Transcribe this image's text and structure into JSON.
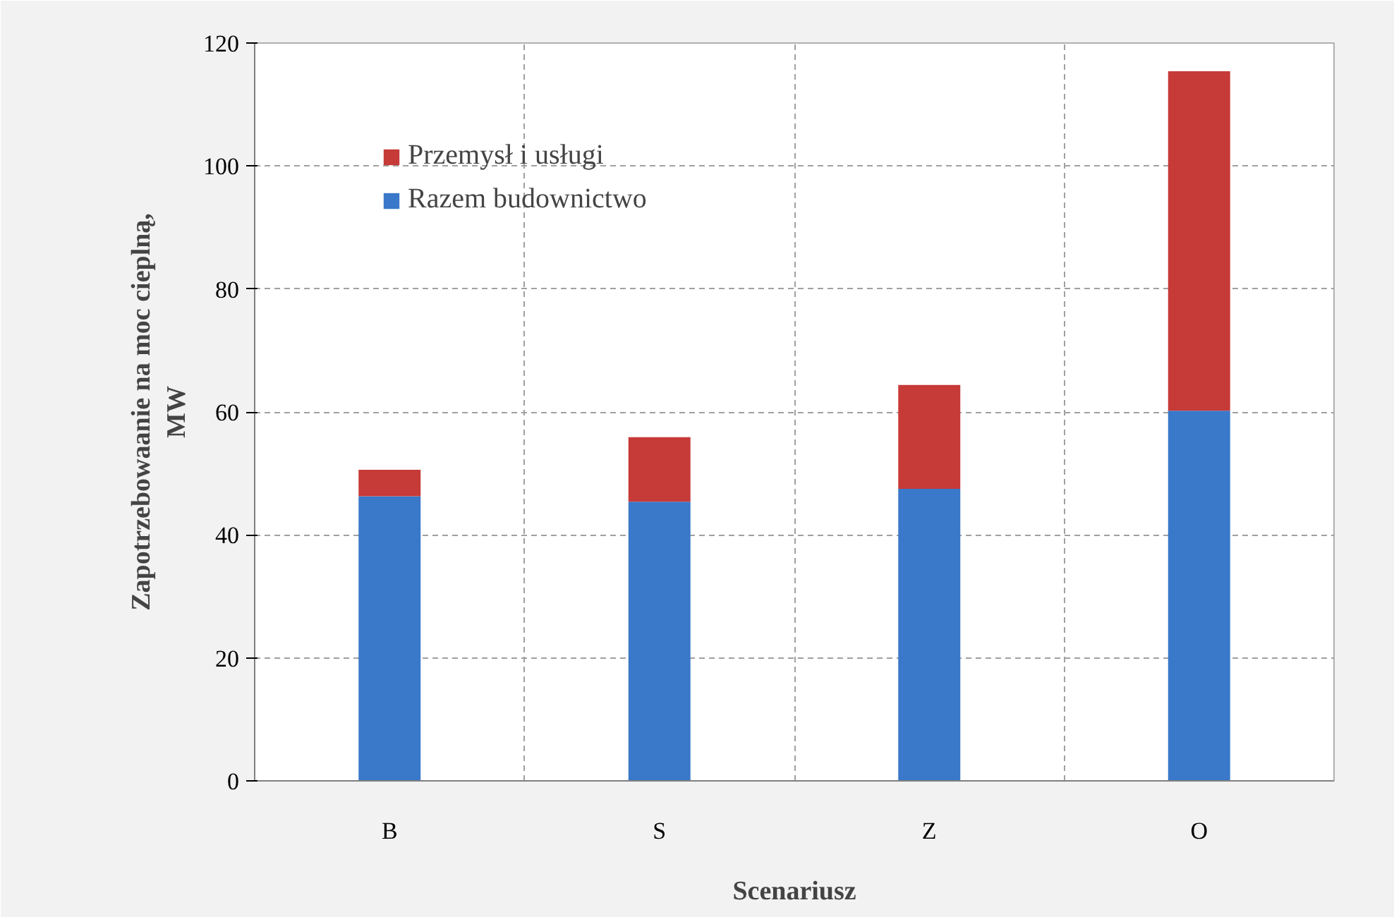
{
  "chart_data": {
    "type": "bar",
    "stacked": true,
    "xlabel": "Scenariusz",
    "ylabel": "Zapotrzebowaanie na moc cieplną, MW",
    "categories": [
      "B",
      "S",
      "Z",
      "O"
    ],
    "series": [
      {
        "name": "Razem budownictwo",
        "color": "#3a78c9",
        "values": [
          46.3,
          45.4,
          47.5,
          60.2
        ]
      },
      {
        "name": "Przemysł i usługi",
        "color": "#c63a38",
        "values": [
          4.3,
          10.5,
          16.9,
          55.2
        ]
      }
    ],
    "ylim": [
      0,
      120
    ],
    "yticks": [
      0,
      20,
      40,
      60,
      80,
      100,
      120
    ],
    "grid": true,
    "legend": "top left"
  }
}
